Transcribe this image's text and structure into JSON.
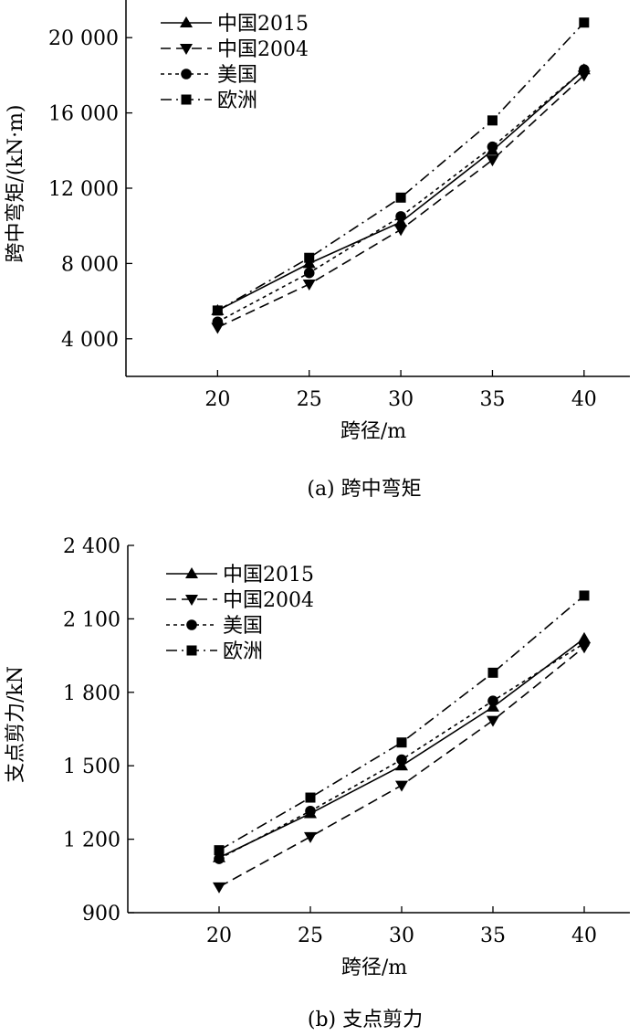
{
  "chart_data": [
    {
      "type": "line",
      "caption": "(a) 跨中弯矩",
      "xlabel": "跨径/m",
      "ylabel": "跨中弯矩/(kN·m)",
      "x": [
        20,
        25,
        30,
        35,
        40
      ],
      "xticks": [
        "20",
        "25",
        "30",
        "35",
        "40"
      ],
      "yticks": [
        {
          "value": 4000,
          "label": "4 000"
        },
        {
          "value": 8000,
          "label": "8 000"
        },
        {
          "value": 12000,
          "label": "12 000"
        },
        {
          "value": 16000,
          "label": "16 000"
        },
        {
          "value": 20000,
          "label": "20 000"
        }
      ],
      "xlim": [
        15,
        42.5
      ],
      "ylim": [
        2000,
        22000
      ],
      "legend_position": "top-left",
      "series": [
        {
          "name": "中国2015",
          "marker": "triangle-up",
          "line": "solid",
          "values": [
            5500,
            8000,
            10200,
            14000,
            18300
          ]
        },
        {
          "name": "中国2004",
          "marker": "triangle-down",
          "line": "dashed",
          "values": [
            4600,
            6900,
            9800,
            13500,
            18000
          ]
        },
        {
          "name": "美国",
          "marker": "circle",
          "line": "dotted",
          "values": [
            4900,
            7500,
            10500,
            14200,
            18300
          ]
        },
        {
          "name": "欧洲",
          "marker": "square",
          "line": "dashdot",
          "values": [
            5500,
            8300,
            11500,
            15600,
            20800
          ]
        }
      ]
    },
    {
      "type": "line",
      "caption": "(b) 支点剪力",
      "xlabel": "跨径/m",
      "ylabel": "支点剪力/kN",
      "x": [
        20,
        25,
        30,
        35,
        40
      ],
      "xticks": [
        "20",
        "25",
        "30",
        "35",
        "40"
      ],
      "yticks": [
        {
          "value": 900,
          "label": "900"
        },
        {
          "value": 1200,
          "label": "1 200"
        },
        {
          "value": 1500,
          "label": "1 500"
        },
        {
          "value": 1800,
          "label": "1 800"
        },
        {
          "value": 2100,
          "label": "2 100"
        },
        {
          "value": 2400,
          "label": "2 400"
        }
      ],
      "xlim": [
        15,
        42.5
      ],
      "ylim": [
        900,
        2400
      ],
      "legend_position": "top-left",
      "series": [
        {
          "name": "中国2015",
          "marker": "triangle-up",
          "line": "solid",
          "values": [
            1125,
            1305,
            1500,
            1740,
            2020
          ]
        },
        {
          "name": "中国2004",
          "marker": "triangle-down",
          "line": "dashed",
          "values": [
            1005,
            1210,
            1420,
            1685,
            1985
          ]
        },
        {
          "name": "美国",
          "marker": "circle",
          "line": "dotted",
          "values": [
            1120,
            1315,
            1525,
            1765,
            2000
          ]
        },
        {
          "name": "欧洲",
          "marker": "square",
          "line": "dashdot",
          "values": [
            1155,
            1370,
            1595,
            1880,
            2195
          ]
        }
      ]
    }
  ]
}
